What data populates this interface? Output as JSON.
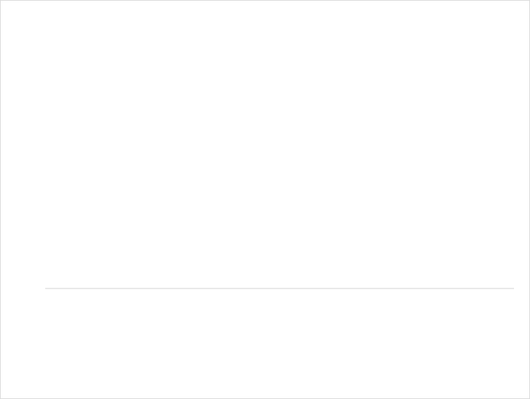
{
  "chart_data": {}
}
